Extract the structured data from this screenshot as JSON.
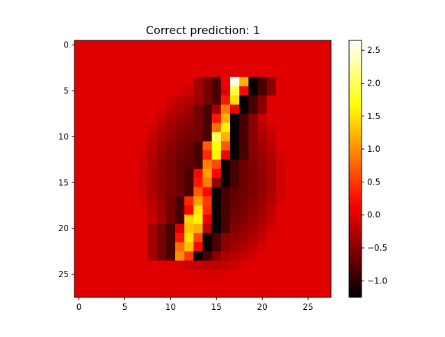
{
  "chart_data": {
    "type": "heatmap",
    "title": "Correct prediction: 1",
    "rows": 28,
    "cols": 28,
    "colormap": "hot",
    "vmin": -1.25,
    "vmax": 2.65,
    "x_ticks": [
      0,
      5,
      10,
      15,
      20,
      25
    ],
    "y_ticks": [
      0,
      5,
      10,
      15,
      20,
      25
    ],
    "colorbar_ticks": [
      {
        "value": 2.5,
        "label": "2.5"
      },
      {
        "value": 2.0,
        "label": "2.0"
      },
      {
        "value": 1.5,
        "label": "1.5"
      },
      {
        "value": 1.0,
        "label": "1.0"
      },
      {
        "value": 0.5,
        "label": "0.5"
      },
      {
        "value": 0.0,
        "label": "0.0"
      },
      {
        "value": -0.5,
        "label": "−0.5"
      },
      {
        "value": -1.0,
        "label": "−1.0"
      }
    ],
    "background_value": 0.0,
    "stroke": [
      {
        "row": 4,
        "values": {
          "16": 0.1,
          "17": 2.6,
          "18": 1.2
        }
      },
      {
        "row": 5,
        "values": {
          "16": 0.0,
          "17": 1.9,
          "18": 0.2
        }
      },
      {
        "row": 6,
        "values": {
          "16": 0.3,
          "17": 1.5
        }
      },
      {
        "row": 7,
        "values": {
          "15": -0.3,
          "16": 0.9,
          "17": 0.1
        }
      },
      {
        "row": 8,
        "values": {
          "15": 0.3,
          "16": 1.2
        }
      },
      {
        "row": 9,
        "values": {
          "15": 0.8,
          "16": 1.6
        }
      },
      {
        "row": 10,
        "values": {
          "15": 2.0,
          "16": 1.2
        }
      },
      {
        "row": 11,
        "values": {
          "14": 0.7,
          "15": 1.7,
          "16": 0.7
        }
      },
      {
        "row": 12,
        "values": {
          "14": 0.4,
          "15": 1.6,
          "16": 0.1
        }
      },
      {
        "row": 13,
        "values": {
          "14": 0.9,
          "15": 0.6
        }
      },
      {
        "row": 14,
        "values": {
          "13": 0.2,
          "14": 1.1,
          "15": 0.2
        }
      },
      {
        "row": 15,
        "values": {
          "13": 0.3,
          "14": 0.9,
          "15": -0.4
        }
      },
      {
        "row": 16,
        "values": {
          "13": 0.7,
          "14": 0.2
        }
      },
      {
        "row": 17,
        "values": {
          "12": 0.4,
          "13": 1.1,
          "14": 0.5
        }
      },
      {
        "row": 18,
        "values": {
          "12": 0.2,
          "13": 1.5,
          "14": 0.4
        }
      },
      {
        "row": 19,
        "values": {
          "12": 1.4,
          "13": 1.6,
          "14": 0.1
        }
      },
      {
        "row": 20,
        "values": {
          "11": 0.0,
          "12": 1.3,
          "13": 1.2,
          "14": -0.2
        }
      },
      {
        "row": 21,
        "values": {
          "11": 0.3,
          "12": 1.5,
          "13": 0.6
        }
      },
      {
        "row": 22,
        "values": {
          "11": 0.8,
          "12": 1.3,
          "13": 0.2
        }
      },
      {
        "row": 23,
        "values": {
          "11": 1.0,
          "12": 0.5
        }
      }
    ],
    "halo": {
      "center_row": 14.5,
      "center_col": 14.5,
      "radius_rows": 9.5,
      "radius_cols": 7.0,
      "min_value": -0.8,
      "line_min_value": -1.2
    }
  }
}
